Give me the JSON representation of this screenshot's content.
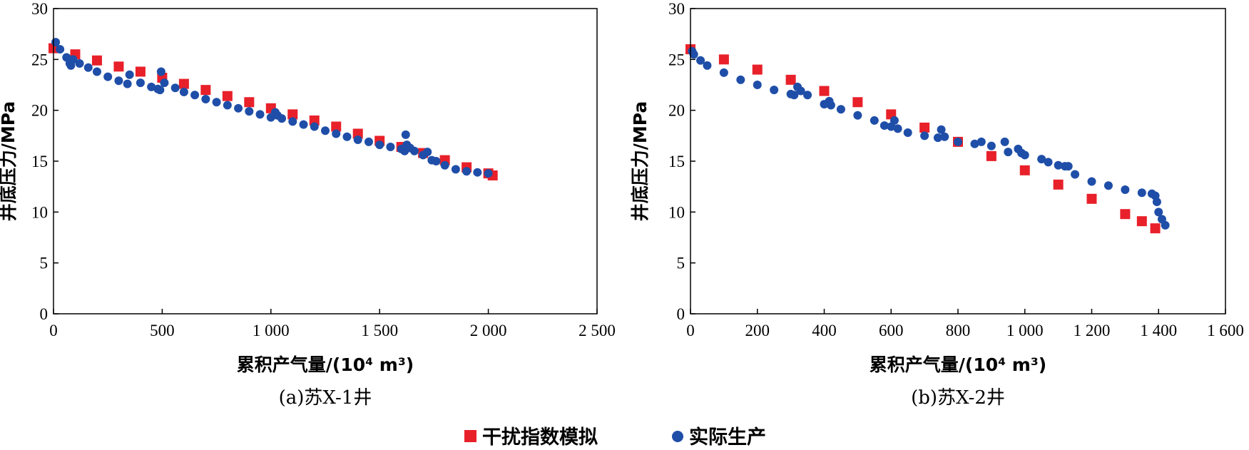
{
  "legend": {
    "sim_label": "干扰指数模拟",
    "actual_label": "实际生产",
    "sim_color": "#e8202a",
    "actual_color": "#1f4ea8"
  },
  "chart_data": [
    {
      "type": "scatter",
      "caption": "(a)苏X-1井",
      "xlabel": "累积产气量/(10⁴ m³)",
      "ylabel": "井底压力/MPa",
      "xlim": [
        0,
        2500
      ],
      "ylim": [
        0,
        30
      ],
      "x_ticks": [
        "0",
        "500",
        "1 000",
        "1 500",
        "2 000",
        "2 500"
      ],
      "x_tick_values": [
        0,
        500,
        1000,
        1500,
        2000,
        2500
      ],
      "y_ticks": [
        "0",
        "5",
        "10",
        "15",
        "20",
        "25",
        "30"
      ],
      "y_tick_values": [
        0,
        5,
        10,
        15,
        20,
        25,
        30
      ],
      "series": [
        {
          "name": "干扰指数模拟",
          "marker": "square",
          "color": "#e8202a",
          "x": [
            0,
            100,
            200,
            300,
            400,
            500,
            600,
            700,
            800,
            900,
            1000,
            1100,
            1200,
            1300,
            1400,
            1500,
            1600,
            1700,
            1800,
            1900,
            2000,
            2020
          ],
          "y": [
            26.1,
            25.5,
            24.9,
            24.3,
            23.8,
            23.2,
            22.6,
            22.0,
            21.4,
            20.8,
            20.2,
            19.6,
            19.0,
            18.4,
            17.7,
            17.0,
            16.4,
            15.8,
            15.1,
            14.4,
            13.8,
            13.6
          ]
        },
        {
          "name": "实际生产",
          "marker": "circle",
          "color": "#1f4ea8",
          "x": [
            10,
            30,
            60,
            75,
            80,
            90,
            120,
            160,
            200,
            250,
            300,
            340,
            350,
            400,
            450,
            480,
            490,
            495,
            510,
            560,
            600,
            650,
            700,
            750,
            800,
            850,
            900,
            950,
            1000,
            1020,
            1030,
            1050,
            1100,
            1150,
            1200,
            1250,
            1300,
            1350,
            1400,
            1450,
            1500,
            1550,
            1600,
            1615,
            1620,
            1625,
            1640,
            1660,
            1700,
            1720,
            1740,
            1760,
            1800,
            1850,
            1900,
            1950,
            2000
          ],
          "y": [
            26.7,
            26.0,
            25.2,
            24.6,
            24.4,
            25.0,
            24.6,
            24.2,
            23.8,
            23.3,
            22.9,
            22.6,
            23.5,
            22.7,
            22.3,
            22.1,
            22.0,
            23.8,
            22.7,
            22.2,
            21.8,
            21.5,
            21.1,
            20.8,
            20.5,
            20.2,
            19.9,
            19.6,
            19.3,
            19.8,
            19.5,
            19.2,
            18.9,
            18.6,
            18.4,
            18.0,
            17.7,
            17.4,
            17.1,
            16.9,
            16.6,
            16.4,
            16.2,
            16.0,
            17.6,
            16.6,
            16.3,
            16.0,
            15.6,
            15.9,
            15.1,
            15.0,
            14.6,
            14.2,
            14.0,
            13.9,
            13.8
          ]
        }
      ]
    },
    {
      "type": "scatter",
      "caption": "(b)苏X-2井",
      "xlabel": "累积产气量/(10⁴ m³)",
      "ylabel": "井底压力/MPa",
      "xlim": [
        0,
        1600
      ],
      "ylim": [
        0,
        30
      ],
      "x_ticks": [
        "0",
        "200",
        "400",
        "600",
        "800",
        "1 000",
        "1 200",
        "1 400",
        "1 600"
      ],
      "x_tick_values": [
        0,
        200,
        400,
        600,
        800,
        1000,
        1200,
        1400,
        1600
      ],
      "y_ticks": [
        "0",
        "5",
        "10",
        "15",
        "20",
        "25",
        "30"
      ],
      "y_tick_values": [
        0,
        5,
        10,
        15,
        20,
        25,
        30
      ],
      "series": [
        {
          "name": "干扰指数模拟",
          "marker": "square",
          "color": "#e8202a",
          "x": [
            0,
            100,
            200,
            300,
            400,
            500,
            600,
            700,
            800,
            900,
            1000,
            1100,
            1200,
            1300,
            1350,
            1390
          ],
          "y": [
            26.0,
            25.0,
            24.0,
            23.0,
            21.9,
            20.8,
            19.6,
            18.3,
            16.9,
            15.5,
            14.1,
            12.7,
            11.3,
            9.8,
            9.1,
            8.4
          ]
        },
        {
          "name": "实际生产",
          "marker": "circle",
          "color": "#1f4ea8",
          "x": [
            5,
            10,
            30,
            50,
            100,
            150,
            200,
            250,
            300,
            310,
            320,
            330,
            350,
            400,
            415,
            420,
            450,
            500,
            550,
            580,
            600,
            610,
            620,
            650,
            700,
            740,
            750,
            760,
            800,
            850,
            870,
            900,
            940,
            950,
            980,
            990,
            1000,
            1050,
            1070,
            1100,
            1120,
            1130,
            1150,
            1200,
            1250,
            1300,
            1350,
            1380,
            1390,
            1395,
            1400,
            1410,
            1420
          ],
          "y": [
            25.8,
            25.5,
            24.9,
            24.4,
            23.7,
            23.0,
            22.5,
            22.0,
            21.6,
            21.5,
            22.3,
            21.9,
            21.5,
            20.6,
            20.9,
            20.5,
            20.1,
            19.5,
            19.0,
            18.5,
            18.4,
            19.0,
            18.2,
            17.8,
            17.5,
            17.3,
            18.1,
            17.4,
            16.9,
            16.7,
            16.9,
            16.5,
            16.9,
            15.9,
            16.2,
            15.8,
            15.6,
            15.2,
            14.9,
            14.6,
            14.5,
            14.5,
            13.7,
            13.0,
            12.6,
            12.2,
            11.9,
            11.8,
            11.6,
            11.0,
            10.0,
            9.3,
            8.7
          ]
        }
      ]
    }
  ]
}
